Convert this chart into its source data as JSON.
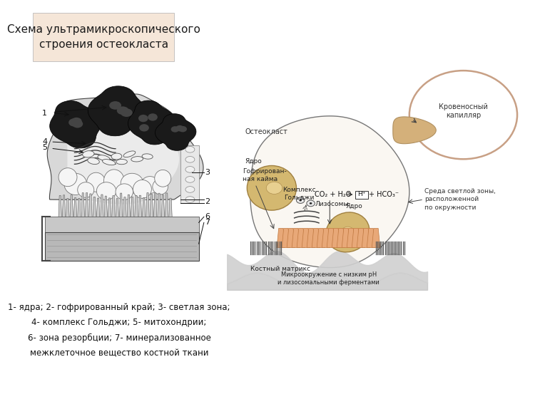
{
  "title": "Схема ультрамикроскопического\nстроения остеокласта",
  "title_bg": "#f5e6d8",
  "bg_color": "#ffffff",
  "caption_lines": [
    "1- ядра; 2- гофрированный край; 3- светлая зона;",
    "4- комплекс Гольджи; 5- митохондрии;",
    "6- зона резорбции; 7- минерализованное",
    "межклеточное вещество костной ткани"
  ],
  "title_fontsize": 11,
  "caption_fontsize": 8.5,
  "label_fontsize": 8
}
